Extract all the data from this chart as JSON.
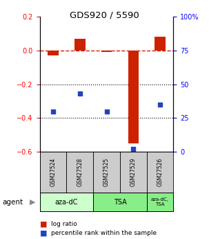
{
  "title": "GDS920 / 5590",
  "samples": [
    "GSM27524",
    "GSM27528",
    "GSM27525",
    "GSM27529",
    "GSM27526"
  ],
  "log_ratio": [
    -0.03,
    0.07,
    -0.01,
    -0.55,
    0.08
  ],
  "percentile_rank": [
    30,
    43,
    30,
    2,
    35
  ],
  "ylim_left": [
    -0.6,
    0.2
  ],
  "ylim_right": [
    0,
    100
  ],
  "yticks_left": [
    -0.6,
    -0.4,
    -0.2,
    0.0,
    0.2
  ],
  "yticks_right": [
    0,
    25,
    50,
    75,
    100
  ],
  "hlines_dotted": [
    -0.4,
    -0.2
  ],
  "bar_color_red": "#cc2200",
  "dot_color_blue": "#2244bb",
  "dashed_color": "#cc2200",
  "background_sample": "#cccccc",
  "group1_color": "#ccffcc",
  "group2_color": "#88ee88",
  "legend_red_label": "log ratio",
  "legend_blue_label": "percentile rank within the sample"
}
